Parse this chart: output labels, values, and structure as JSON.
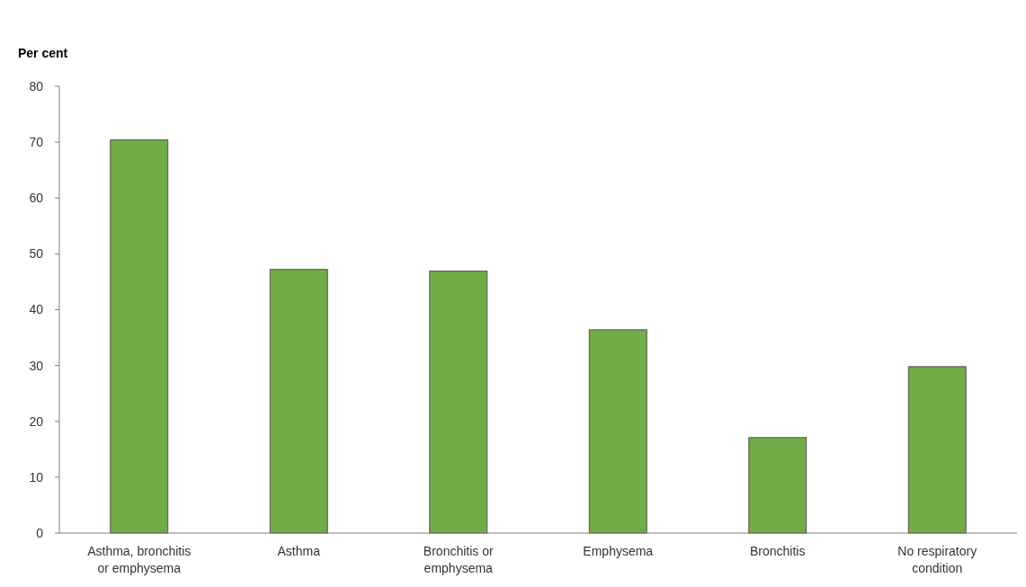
{
  "chart_data": {
    "type": "bar",
    "ylabel": "Per cent",
    "categories": [
      "Asthma, bronchitis or emphysema",
      "Asthma",
      "Bronchitis or emphysema",
      "Emphysema",
      "Bronchitis",
      "No respiratory condition"
    ],
    "values": [
      70.4,
      47.2,
      46.9,
      36.4,
      17.1,
      29.8
    ],
    "color": "#70ad47",
    "ylim": [
      0,
      80
    ],
    "yticks": [
      0,
      10,
      20,
      30,
      40,
      50,
      60,
      70,
      80
    ],
    "grid": false
  }
}
